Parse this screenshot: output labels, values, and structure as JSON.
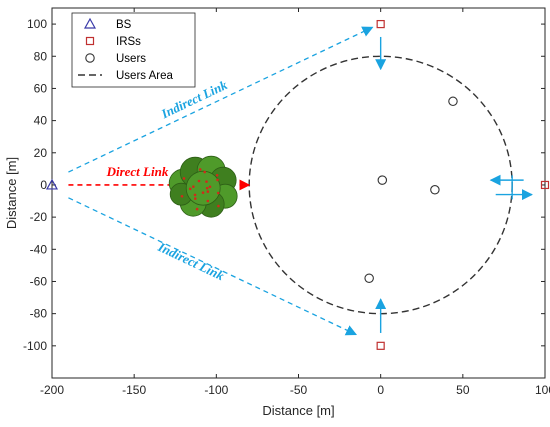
{
  "chart_data": {
    "type": "scatter",
    "xlabel": "Distance [m]",
    "ylabel": "Distance [m]",
    "xlim": [
      -200,
      100
    ],
    "ylim": [
      -120,
      110
    ],
    "xticks": [
      -200,
      -150,
      -100,
      -50,
      0,
      50,
      100
    ],
    "yticks": [
      100,
      80,
      60,
      40,
      20,
      0,
      -20,
      -40,
      -60,
      -80,
      -100
    ],
    "grid": false,
    "legend_position": "top-left",
    "series": [
      {
        "name": "BS",
        "marker": "triangle",
        "color": "#3a3aa8",
        "points": [
          [
            -200,
            0
          ]
        ]
      },
      {
        "name": "IRSs",
        "marker": "square",
        "color": "#c03030",
        "points": [
          [
            0,
            100
          ],
          [
            100,
            0
          ],
          [
            0,
            -100
          ]
        ]
      },
      {
        "name": "Users",
        "marker": "circle",
        "color": "#333333",
        "points": [
          [
            44,
            52
          ],
          [
            1,
            3
          ],
          [
            33,
            -3
          ],
          [
            -7,
            -58
          ]
        ]
      },
      {
        "name": "Users Area",
        "marker": "dashed-line",
        "color": "#333333",
        "circle": {
          "center": [
            0,
            0
          ],
          "radius": 80
        }
      }
    ],
    "annotations": [
      {
        "text": "Direct Link",
        "color": "#ff0000",
        "from": [
          -190,
          0
        ],
        "to": [
          -80,
          0
        ]
      },
      {
        "text": "Indirect Link",
        "color": "#1aa3e0",
        "from": [
          -190,
          8
        ],
        "to": [
          -5,
          98
        ]
      },
      {
        "text": "Indirect Link",
        "color": "#1aa3e0",
        "from": [
          -190,
          -8
        ],
        "to": [
          -15,
          -93
        ]
      }
    ],
    "arrow_color": "#1aa3e0"
  }
}
